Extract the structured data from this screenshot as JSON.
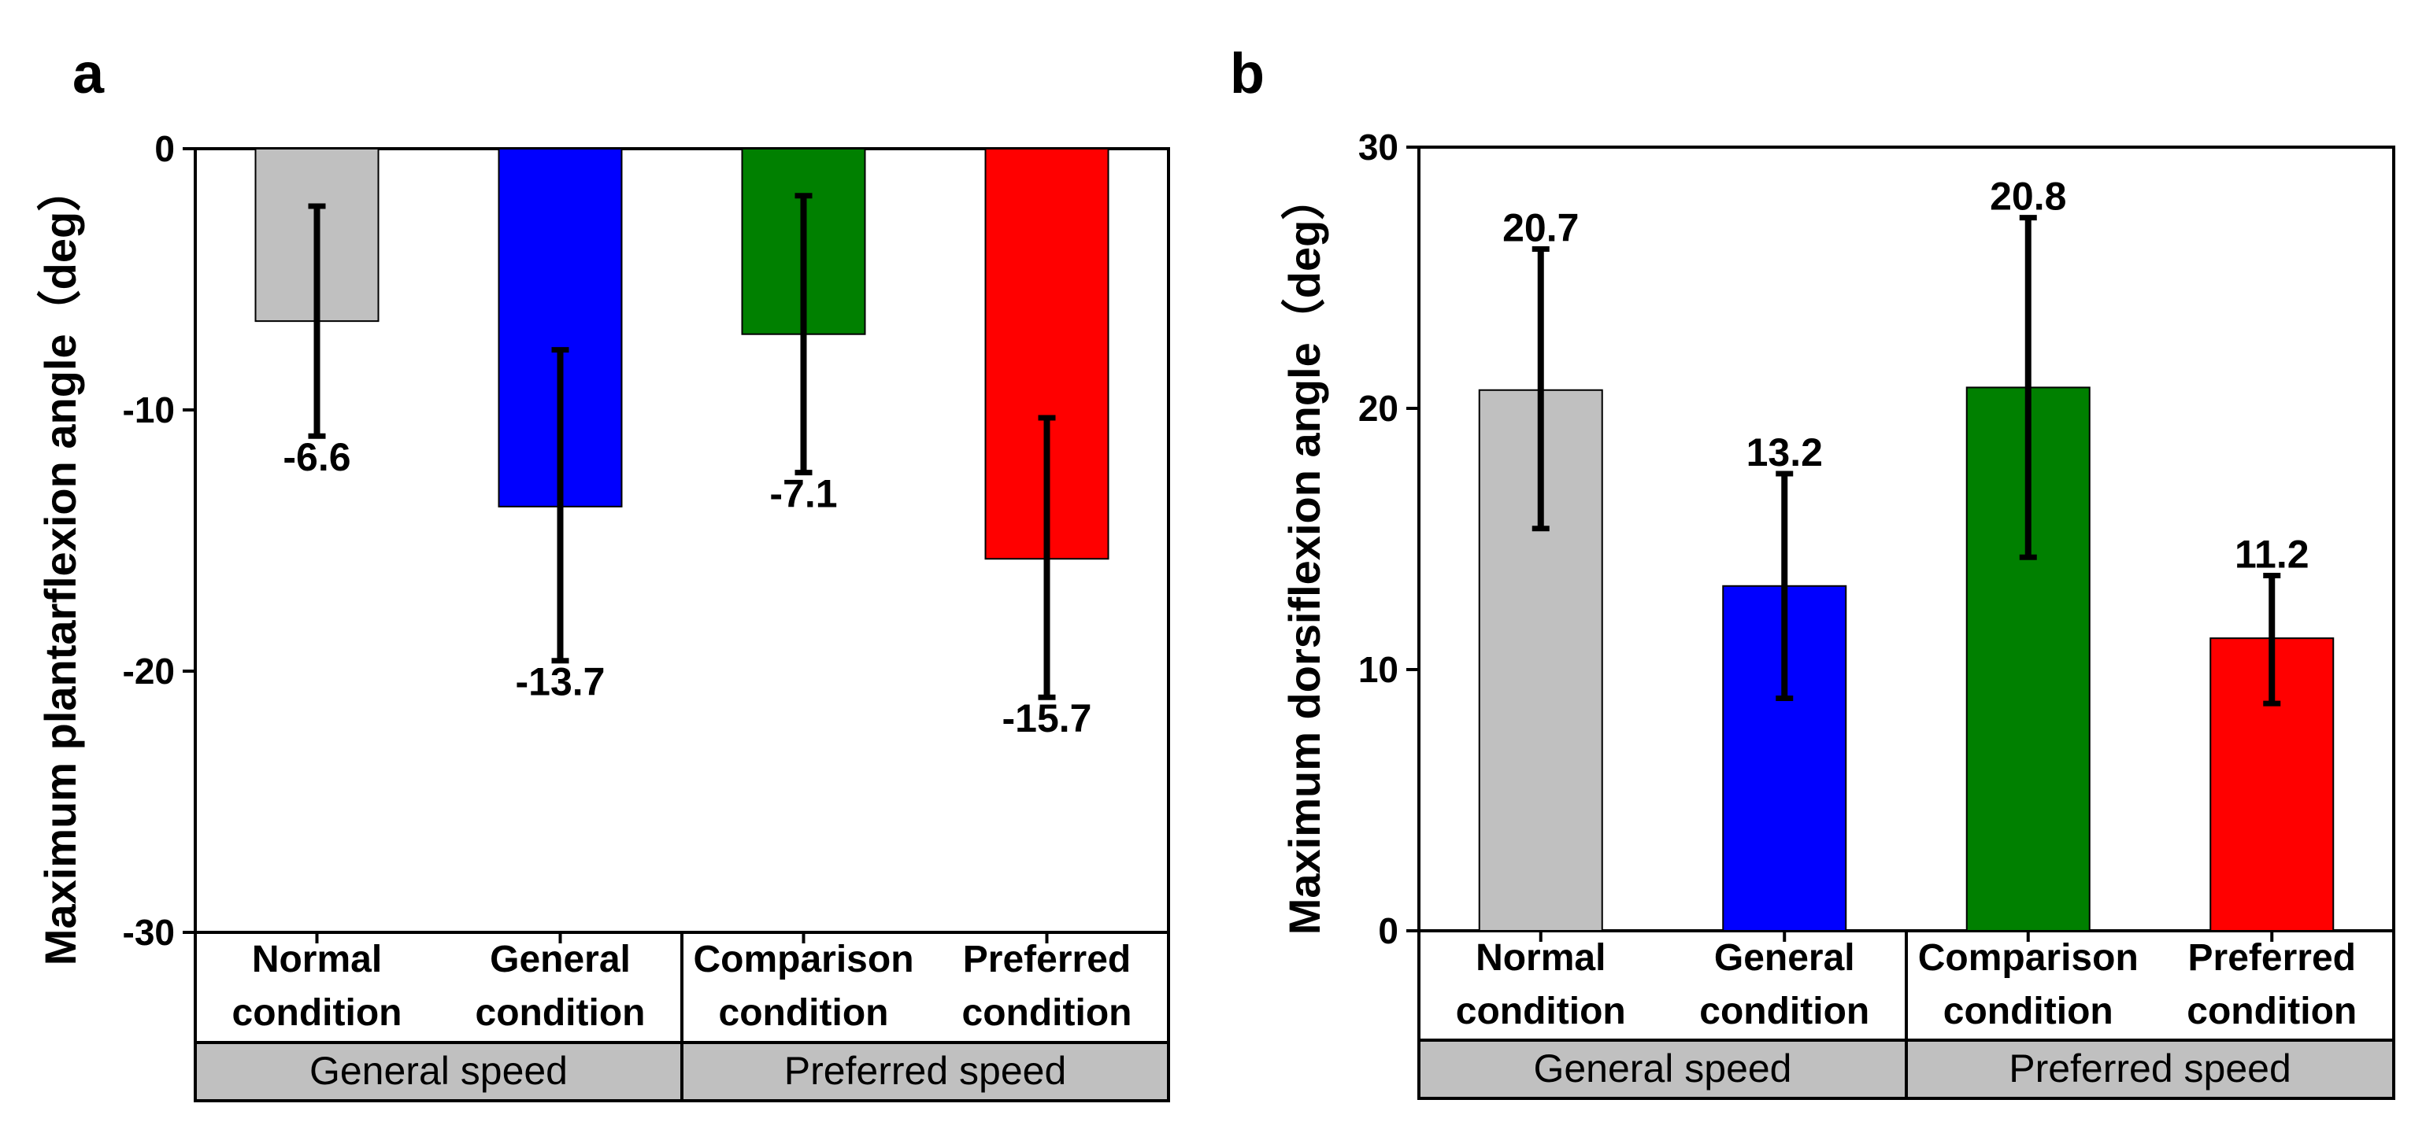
{
  "chart_data": [
    {
      "panel": "a",
      "type": "bar",
      "categories": [
        {
          "line1": "Normal",
          "line2": "condition"
        },
        {
          "line1": "General",
          "line2": "condition"
        },
        {
          "line1": "Comparison",
          "line2": "condition"
        },
        {
          "line1": "Preferred",
          "line2": "condition"
        }
      ],
      "groups": [
        {
          "label": "General speed",
          "span": [
            0,
            1
          ]
        },
        {
          "label": "Preferred speed",
          "span": [
            2,
            3
          ]
        }
      ],
      "values": [
        -6.6,
        -13.7,
        -7.1,
        -15.7
      ],
      "value_labels": [
        "-6.6",
        "-13.7",
        "-7.1",
        "-15.7"
      ],
      "error_low": [
        -11.0,
        -19.6,
        -12.4,
        -21.0
      ],
      "error_high": [
        -2.2,
        -7.7,
        -1.8,
        -10.3
      ],
      "colors": [
        "#c0c0c0",
        "#0000ff",
        "#008000",
        "#ff0000"
      ],
      "ylabel": "Maximum plantarflexion angle（deg）",
      "ylim": [
        -30,
        0
      ],
      "yticks": [
        0,
        -10,
        -20,
        -30
      ],
      "ytick_labels": [
        "0",
        "-10",
        "-20",
        "-30"
      ],
      "grid": false
    },
    {
      "panel": "b",
      "type": "bar",
      "categories": [
        {
          "line1": "Normal",
          "line2": "condition"
        },
        {
          "line1": "General",
          "line2": "condition"
        },
        {
          "line1": "Comparison",
          "line2": "condition"
        },
        {
          "line1": "Preferred",
          "line2": "condition"
        }
      ],
      "groups": [
        {
          "label": "General speed",
          "span": [
            0,
            1
          ]
        },
        {
          "label": "Preferred speed",
          "span": [
            2,
            3
          ]
        }
      ],
      "values": [
        20.7,
        13.2,
        20.8,
        11.2
      ],
      "value_labels": [
        "20.7",
        "13.2",
        "20.8",
        "11.2"
      ],
      "error_low": [
        15.4,
        8.9,
        14.3,
        8.7
      ],
      "error_high": [
        26.1,
        17.5,
        27.3,
        13.6
      ],
      "colors": [
        "#c0c0c0",
        "#0000ff",
        "#008000",
        "#ff0000"
      ],
      "ylabel": "Maximum dorsiflexion angle（deg）",
      "ylim": [
        0,
        30
      ],
      "yticks": [
        0,
        10,
        20,
        30
      ],
      "ytick_labels": [
        "0",
        "10",
        "20",
        "30"
      ],
      "grid": false
    }
  ]
}
